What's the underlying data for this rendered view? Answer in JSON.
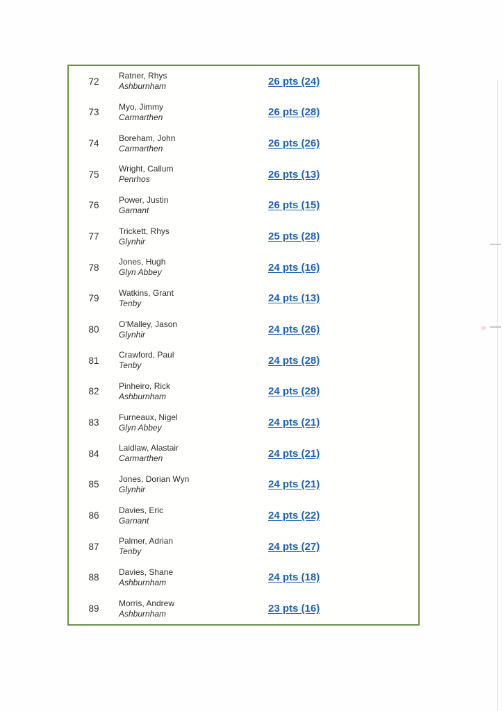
{
  "colors": {
    "table_border": "#6f8f4c",
    "link_blue": "#1e62b4",
    "body_text": "#2e2e2e",
    "paper": "#fefefe"
  },
  "results": {
    "rows": [
      {
        "position": "72",
        "player": "Ratner, Rhys",
        "club": "Ashburnham",
        "score": "26 pts (24)"
      },
      {
        "position": "73",
        "player": "Myo, Jimmy",
        "club": "Carmarthen",
        "score": "26 pts (28)"
      },
      {
        "position": "74",
        "player": "Boreham, John",
        "club": "Carmarthen",
        "score": "26 pts (26)"
      },
      {
        "position": "75",
        "player": "Wright, Callum",
        "club": "Penrhos",
        "score": "26 pts (13)"
      },
      {
        "position": "76",
        "player": "Power, Justin",
        "club": "Garnant",
        "score": "26 pts (15)"
      },
      {
        "position": "77",
        "player": "Trickett, Rhys",
        "club": "Glynhir",
        "score": "25 pts (28)"
      },
      {
        "position": "78",
        "player": "Jones, Hugh",
        "club": "Glyn Abbey",
        "score": "24 pts (16)"
      },
      {
        "position": "79",
        "player": "Watkins, Grant",
        "club": "Tenby",
        "score": "24 pts (13)"
      },
      {
        "position": "80",
        "player": "O'Malley, Jason",
        "club": "Glynhir",
        "score": "24 pts (26)"
      },
      {
        "position": "81",
        "player": "Crawford, Paul",
        "club": "Tenby",
        "score": "24 pts (28)"
      },
      {
        "position": "82",
        "player": "Pinheiro, Rick",
        "club": "Ashburnham",
        "score": "24 pts (28)"
      },
      {
        "position": "83",
        "player": "Furneaux, Nigel",
        "club": "Glyn Abbey",
        "score": "24 pts (21)"
      },
      {
        "position": "84",
        "player": "Laidlaw, Alastair",
        "club": "Carmarthen",
        "score": "24 pts (21)"
      },
      {
        "position": "85",
        "player": "Jones, Dorian Wyn",
        "club": "Glynhir",
        "score": "24 pts (21)"
      },
      {
        "position": "86",
        "player": "Davies, Eric",
        "club": "Garnant",
        "score": "24 pts (22)"
      },
      {
        "position": "87",
        "player": "Palmer, Adrian",
        "club": "Tenby",
        "score": "24 pts (27)"
      },
      {
        "position": "88",
        "player": "Davies, Shane",
        "club": "Ashburnham",
        "score": "24 pts (18)"
      },
      {
        "position": "89",
        "player": "Morris, Andrew",
        "club": "Ashburnham",
        "score": "23 pts (16)"
      }
    ]
  }
}
